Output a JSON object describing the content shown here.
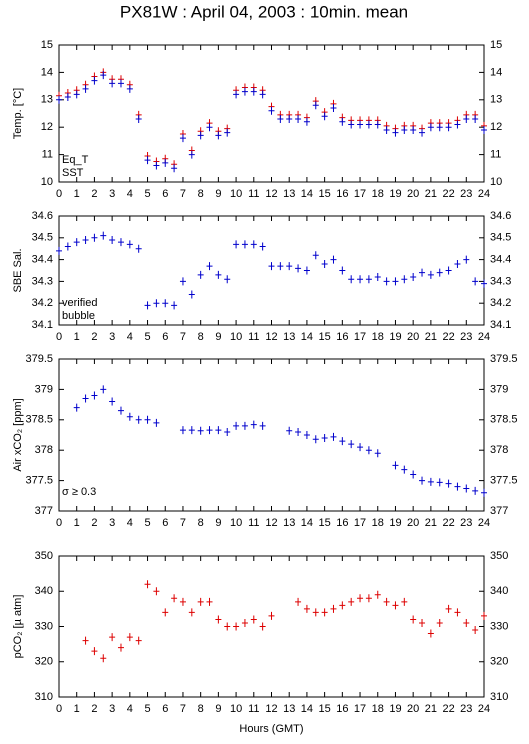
{
  "chart_data": [
    {
      "type": "scatter",
      "title": "PX81W : April 04, 2003 : 10min. mean",
      "ylabel": "Temp. [°C]",
      "xlim": [
        0,
        24
      ],
      "xticks": [
        0,
        1,
        2,
        3,
        4,
        5,
        6,
        7,
        8,
        9,
        10,
        11,
        12,
        13,
        14,
        15,
        16,
        17,
        18,
        19,
        20,
        21,
        22,
        23,
        24
      ],
      "ylim": [
        10,
        15
      ],
      "yticks": [
        10,
        11,
        12,
        13,
        14,
        15
      ],
      "x": [
        0,
        0.5,
        1,
        1.5,
        2,
        2.5,
        3,
        3.5,
        4,
        4.5,
        5,
        5.5,
        6,
        6.5,
        7,
        7.5,
        8,
        8.5,
        9,
        9.5,
        10,
        10.5,
        11,
        11.5,
        12,
        12.5,
        13,
        13.5,
        14,
        14.5,
        15,
        15.5,
        16,
        16.5,
        17,
        17.5,
        18,
        18.5,
        19,
        19.5,
        20,
        20.5,
        21,
        21.5,
        22,
        22.5,
        23,
        23.5,
        24
      ],
      "series": [
        {
          "name": "Eq_T",
          "color": "#dd0000",
          "values": [
            13.15,
            13.25,
            13.35,
            13.55,
            13.85,
            14.0,
            13.75,
            13.75,
            13.55,
            12.45,
            10.95,
            10.75,
            10.85,
            10.65,
            11.75,
            11.15,
            11.85,
            12.15,
            11.85,
            11.95,
            13.35,
            13.45,
            13.45,
            13.35,
            12.75,
            12.45,
            12.45,
            12.45,
            12.35,
            12.95,
            12.55,
            12.85,
            12.35,
            12.25,
            12.25,
            12.25,
            12.25,
            12.05,
            11.95,
            12.05,
            12.05,
            11.95,
            12.15,
            12.15,
            12.15,
            12.25,
            12.45,
            12.45,
            12.05
          ]
        },
        {
          "name": "SST",
          "color": "#0000cc",
          "values": [
            13.0,
            13.1,
            13.2,
            13.4,
            13.7,
            13.9,
            13.6,
            13.6,
            13.4,
            12.3,
            10.8,
            10.6,
            10.7,
            10.5,
            11.6,
            11.0,
            11.7,
            12.0,
            11.7,
            11.8,
            13.2,
            13.3,
            13.3,
            13.2,
            12.6,
            12.3,
            12.3,
            12.3,
            12.2,
            12.8,
            12.4,
            12.7,
            12.2,
            12.1,
            12.1,
            12.1,
            12.1,
            11.9,
            11.8,
            11.9,
            11.9,
            11.8,
            12.0,
            12.0,
            12.0,
            12.1,
            12.3,
            12.3,
            11.9
          ]
        }
      ]
    },
    {
      "type": "scatter",
      "ylabel": "SBE Sal.",
      "xlim": [
        0,
        24
      ],
      "xticks": [
        0,
        1,
        2,
        3,
        4,
        5,
        6,
        7,
        8,
        9,
        10,
        11,
        12,
        13,
        14,
        15,
        16,
        17,
        18,
        19,
        20,
        21,
        22,
        23,
        24
      ],
      "ylim": [
        34.1,
        34.6
      ],
      "yticks": [
        34.1,
        34.2,
        34.3,
        34.4,
        34.5,
        34.6
      ],
      "legend_labels": [
        {
          "text": "verified",
          "color": "#0000cc"
        },
        {
          "text": "bubble",
          "color": "#cc00cc"
        }
      ],
      "x": [
        0,
        0.5,
        1,
        1.5,
        2,
        2.5,
        3,
        3.5,
        4,
        4.5,
        5,
        5.5,
        6,
        6.5,
        7,
        7.5,
        8,
        8.5,
        9,
        9.5,
        10,
        10.5,
        11,
        11.5,
        12,
        12.5,
        13,
        13.5,
        14,
        14.5,
        15,
        15.5,
        16,
        16.5,
        17,
        17.5,
        18,
        18.5,
        19,
        19.5,
        20,
        20.5,
        21,
        21.5,
        22,
        22.5,
        23,
        23.5,
        24
      ],
      "series": [
        {
          "name": "verified",
          "color": "#0000cc",
          "values": [
            34.44,
            34.46,
            34.48,
            34.49,
            34.5,
            34.51,
            34.49,
            34.48,
            34.47,
            34.45,
            34.19,
            34.2,
            34.2,
            34.19,
            34.3,
            34.24,
            34.33,
            34.37,
            34.33,
            34.31,
            34.47,
            34.47,
            34.47,
            34.46,
            34.37,
            34.37,
            34.37,
            34.36,
            34.35,
            34.42,
            34.38,
            34.4,
            34.35,
            34.31,
            34.31,
            34.31,
            34.32,
            34.3,
            34.3,
            34.31,
            34.32,
            34.34,
            34.33,
            34.34,
            34.35,
            34.38,
            34.4,
            34.3,
            34.29
          ]
        }
      ]
    },
    {
      "type": "scatter",
      "ylabel": "Air xCO₂ [ppm]",
      "annotation": "σ ≥ 0.3",
      "annotation_color": "#cc00cc",
      "xlim": [
        0,
        24
      ],
      "xticks": [
        0,
        1,
        2,
        3,
        4,
        5,
        6,
        7,
        8,
        9,
        10,
        11,
        12,
        13,
        14,
        15,
        16,
        17,
        18,
        19,
        20,
        21,
        22,
        23,
        24
      ],
      "ylim": [
        377,
        379.5
      ],
      "yticks": [
        377,
        377.5,
        378,
        378.5,
        379,
        379.5
      ],
      "x": [
        0,
        0.5,
        1,
        1.5,
        2,
        2.5,
        3,
        3.5,
        4,
        4.5,
        5,
        5.5,
        6,
        6.5,
        7,
        7.5,
        8,
        8.5,
        9,
        9.5,
        10,
        10.5,
        11,
        11.5,
        12,
        12.5,
        13,
        13.5,
        14,
        14.5,
        15,
        15.5,
        16,
        16.5,
        17,
        17.5,
        18,
        18.5,
        19,
        19.5,
        20,
        20.5,
        21,
        21.5,
        22,
        22.5,
        23,
        23.5,
        24
      ],
      "series": [
        {
          "name": "Air xCO₂",
          "color": "#0000cc",
          "values": [
            null,
            null,
            378.7,
            378.85,
            378.9,
            379.0,
            378.8,
            378.65,
            378.55,
            378.5,
            378.5,
            378.45,
            null,
            null,
            378.33,
            378.33,
            378.32,
            378.33,
            378.33,
            378.3,
            378.4,
            378.4,
            378.42,
            378.4,
            null,
            null,
            378.32,
            378.3,
            378.25,
            378.18,
            378.2,
            378.22,
            378.15,
            378.1,
            378.05,
            378.0,
            377.95,
            null,
            377.75,
            377.68,
            377.6,
            377.5,
            377.48,
            377.47,
            377.45,
            377.4,
            377.37,
            377.33,
            377.3
          ]
        }
      ]
    },
    {
      "type": "scatter",
      "ylabel": "pCO₂ [µ atm]",
      "xlabel": "Hours (GMT)",
      "xlim": [
        0,
        24
      ],
      "xticks": [
        0,
        1,
        2,
        3,
        4,
        5,
        6,
        7,
        8,
        9,
        10,
        11,
        12,
        13,
        14,
        15,
        16,
        17,
        18,
        19,
        20,
        21,
        22,
        23,
        24
      ],
      "ylim": [
        310,
        350
      ],
      "yticks": [
        310,
        320,
        330,
        340,
        350
      ],
      "x": [
        0,
        0.5,
        1,
        1.5,
        2,
        2.5,
        3,
        3.5,
        4,
        4.5,
        5,
        5.5,
        6,
        6.5,
        7,
        7.5,
        8,
        8.5,
        9,
        9.5,
        10,
        10.5,
        11,
        11.5,
        12,
        12.5,
        13,
        13.5,
        14,
        14.5,
        15,
        15.5,
        16,
        16.5,
        17,
        17.5,
        18,
        18.5,
        19,
        19.5,
        20,
        20.5,
        21,
        21.5,
        22,
        22.5,
        23,
        23.5,
        24
      ],
      "series": [
        {
          "name": "pCO₂",
          "color": "#dd0000",
          "values": [
            null,
            null,
            null,
            326,
            323,
            321,
            327,
            324,
            327,
            326,
            342,
            340,
            334,
            338,
            337,
            334,
            337,
            337,
            332,
            330,
            330,
            331,
            332,
            330,
            333,
            null,
            null,
            337,
            335,
            334,
            334,
            335,
            336,
            337,
            338,
            338,
            339,
            337,
            336,
            337,
            332,
            331,
            328,
            331,
            335,
            334,
            331,
            329,
            333
          ]
        }
      ]
    }
  ]
}
